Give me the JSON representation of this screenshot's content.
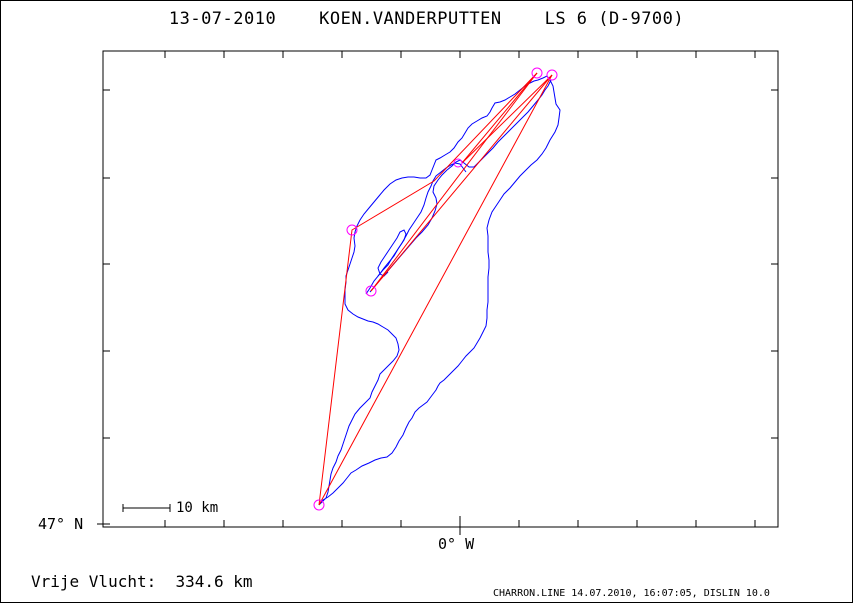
{
  "title": "13-07-2010    KOEN.VANDERPUTTEN    LS 6 (D-9700)",
  "map": {
    "latitude_label": "47° N",
    "longitude_label": "0° W",
    "scale_label": "10 km"
  },
  "footer": {
    "distance": "Vrije Vlucht:  334.6 km",
    "info": "CHARRON.LINE 14.07.2010, 16:07:05, DISLIN 10.0"
  },
  "colors": {
    "track": "#0000ff",
    "task_line": "#ff0000",
    "turnpoint": "#ff00ff",
    "frame": "#000000"
  }
}
